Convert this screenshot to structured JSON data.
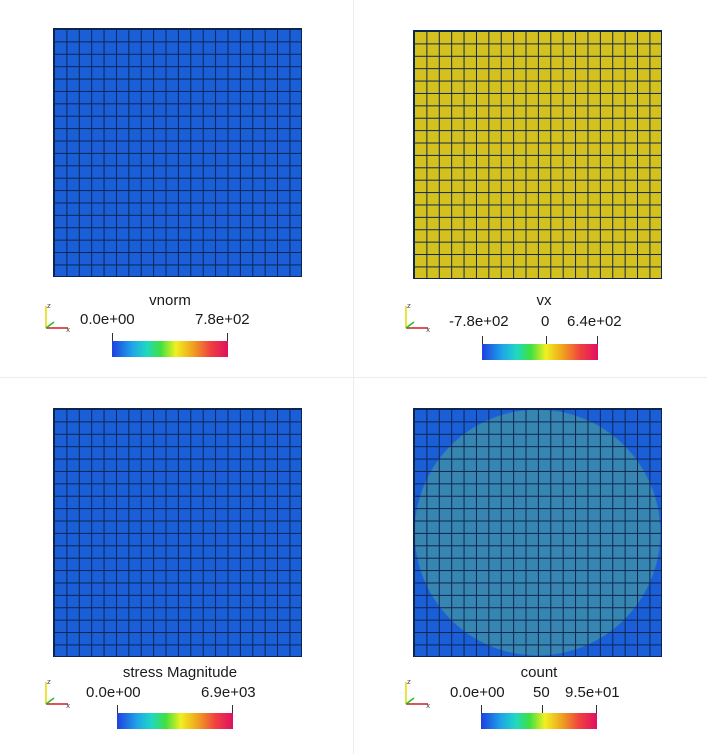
{
  "panels": [
    {
      "id": "vnorm",
      "field": "vnorm",
      "ticks": [
        "0.0e+00",
        "7.8e+02"
      ]
    },
    {
      "id": "vx",
      "field": "vx",
      "ticks": [
        "-7.8e+02",
        "0",
        "6.4e+02"
      ]
    },
    {
      "id": "stress",
      "field": "stress Magnitude",
      "ticks": [
        "0.0e+00",
        "6.9e+03"
      ]
    },
    {
      "id": "count",
      "field": "count",
      "ticks": [
        "0.0e+00",
        "50",
        "9.5e+01"
      ]
    }
  ],
  "axes": {
    "x": "x",
    "y": "y",
    "z": "z"
  },
  "colors": {
    "mesh_blue": "#1a5ed8",
    "mesh_yellow": "#d4c11e",
    "edge": "#0d2550",
    "overlay": "#3c8caa"
  }
}
